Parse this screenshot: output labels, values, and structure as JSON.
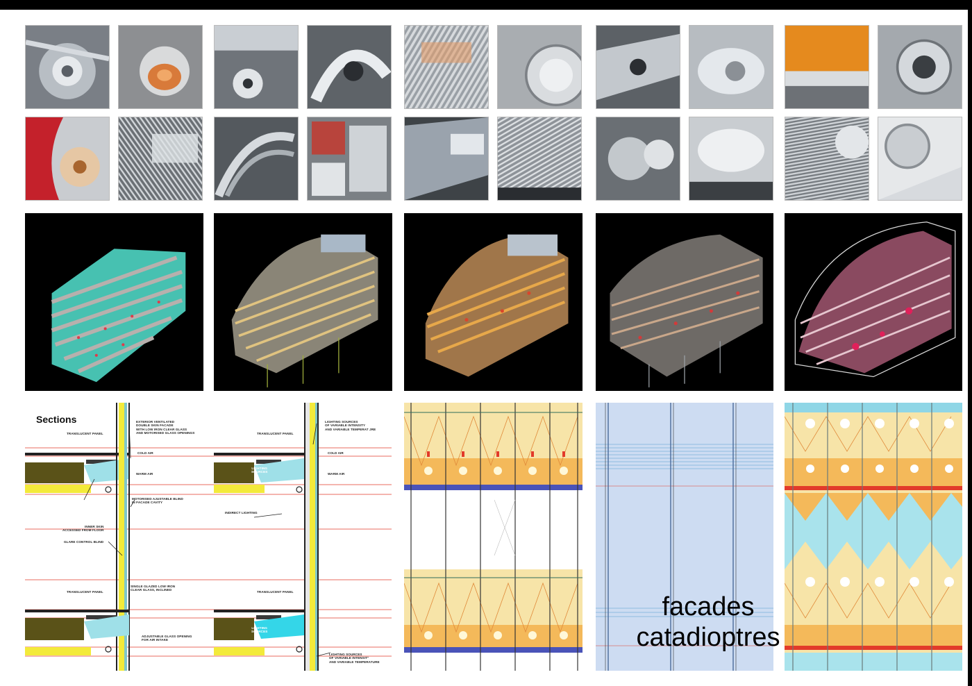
{
  "sections": {
    "title": "Sections",
    "left_notes": {
      "translucent_top": "TRANSLUCENT PANEL",
      "exterior_facade": "EXTERIOR VENTILATED\nDOUBLE SKIN FACADE\nWITH LOW IRON CLEAR GLASS\nAND MOTORISED GLASS OPENINGS",
      "cold_air": "COLD AIR",
      "warm_air": "WARM AIR",
      "motorised_blind": "MOTORISED AJUSTABLE BLIND\nIN FACADE CAVITY",
      "inner_skin": "INNER SKIN\nACCESSED FROM FLOOR",
      "glare_blind": "GLARE CONTROL BLIND",
      "translucent_bottom": "TRANSLUCENT PANEL",
      "single_glazed": "SINGLE GLAZED LOW IRON\nCLEAR GLASS, INCLINED",
      "adjustable_opening": "ADJUSTABLE GLASS OPENING\nFOR AIR INTAKE"
    },
    "right_notes": {
      "translucent_top": "TRANSLUCENT PANEL",
      "lighting_top": "LIGHTING SOURCES\nOF VARIABLE INTENSITY\nAND VARIABLE TEMPERAT JRE",
      "cold_air": "COLD AIR",
      "warm_air": "WARM AIR",
      "lighting_sources_box": "LIGHTING\nSOURCES",
      "indirect_lighting": "INDIRECT LIGHTING",
      "translucent_bottom": "TRANSLUCENT PANEL",
      "lighting_sources_box2": "LIGHTING\nSOURCES",
      "lighting_bottom": "LIGHTING SOURCES\nOF VARIABLE INTENSIT\"\nAND VARIABLE TEMPERATURE"
    }
  },
  "caption": {
    "line1": "facades",
    "line2": "catadioptres"
  },
  "colors": {
    "background": "#ffffff",
    "frame": "#000000",
    "render_bg": "#000000",
    "facade_blue": "#cddcf2",
    "facade_yellow": "#f7e4a8",
    "facade_cyan": "#a9e3ec",
    "red_line": "#e23a2a"
  }
}
